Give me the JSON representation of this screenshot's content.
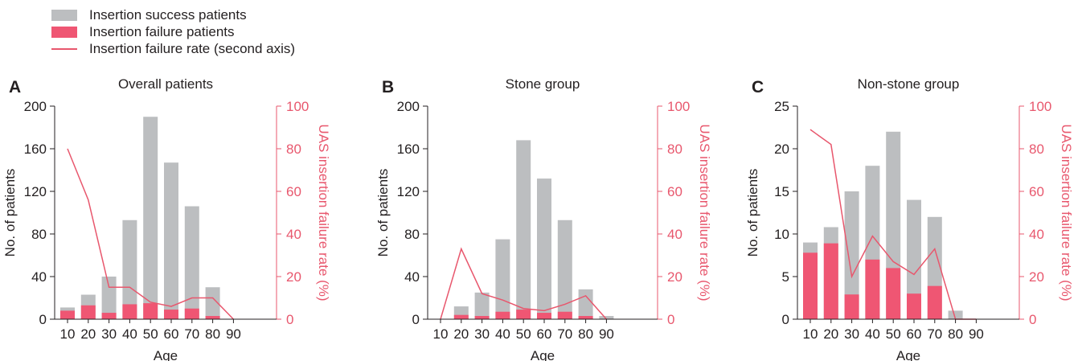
{
  "legend": {
    "success_label": "Insertion success patients",
    "failure_label": "Insertion failure patients",
    "rate_label": "Insertion failure rate (second axis)"
  },
  "colors": {
    "success": "#bcbec0",
    "failure": "#ef5673",
    "rate": "#e8576d",
    "axis": "#231f20"
  },
  "chart_data": [
    {
      "panel": "A",
      "type": "bar",
      "title": "Overall patients",
      "xlabel": "Age",
      "ylabel": "No. of patients",
      "y2label": "UAS insertion failure rate (%)",
      "categories": [
        "10",
        "20",
        "30",
        "40",
        "50",
        "60",
        "70",
        "80",
        "90"
      ],
      "ylim": [
        0,
        200
      ],
      "yticks": [
        "0",
        "40",
        "80",
        "120",
        "160",
        "200"
      ],
      "y2lim": [
        0,
        100
      ],
      "y2ticks": [
        "0",
        "20",
        "40",
        "60",
        "80",
        "100"
      ],
      "series": [
        {
          "name": "Insertion success patients",
          "values": [
            11,
            23,
            40,
            93,
            190,
            147,
            106,
            30,
            0
          ]
        },
        {
          "name": "Insertion failure patients",
          "values": [
            8,
            13,
            6,
            14,
            15,
            9,
            10,
            3,
            0
          ]
        },
        {
          "name": "Insertion failure rate (second axis)",
          "axis": "secondary",
          "type": "line",
          "values": [
            80,
            56,
            15,
            15,
            8,
            6,
            10,
            10,
            0
          ]
        }
      ]
    },
    {
      "panel": "B",
      "type": "bar",
      "title": "Stone group",
      "xlabel": "Age",
      "ylabel": "No. of patients",
      "y2label": "UAS insertion failure rate (%)",
      "categories": [
        "10",
        "20",
        "30",
        "40",
        "50",
        "60",
        "70",
        "80",
        "90"
      ],
      "ylim": [
        0,
        200
      ],
      "yticks": [
        "0",
        "40",
        "80",
        "120",
        "160",
        "200"
      ],
      "y2lim": [
        0,
        100
      ],
      "y2ticks": [
        "0",
        "20",
        "40",
        "60",
        "80",
        "100"
      ],
      "series": [
        {
          "name": "Insertion success patients",
          "values": [
            0,
            12,
            25,
            75,
            168,
            132,
            93,
            28,
            3
          ]
        },
        {
          "name": "Insertion failure patients",
          "values": [
            0,
            4,
            3,
            7,
            9,
            6,
            7,
            3,
            0
          ]
        },
        {
          "name": "Insertion failure rate (second axis)",
          "axis": "secondary",
          "type": "line",
          "values": [
            0,
            33,
            12,
            9,
            5,
            4,
            7,
            11,
            0
          ]
        }
      ]
    },
    {
      "panel": "C",
      "type": "bar",
      "title": "Non-stone group",
      "xlabel": "Age",
      "ylabel": "No. of patients",
      "y2label": "UAS insertion failure rate (%)",
      "categories": [
        "10",
        "20",
        "30",
        "40",
        "50",
        "60",
        "70",
        "80",
        "90"
      ],
      "ylim": [
        0,
        25
      ],
      "yticks": [
        "0",
        "5",
        "10",
        "15",
        "20",
        "25"
      ],
      "y2lim": [
        0,
        100
      ],
      "y2ticks": [
        "0",
        "20",
        "40",
        "60",
        "80",
        "100"
      ],
      "series": [
        {
          "name": "Insertion success patients",
          "values": [
            9,
            10.8,
            15,
            18,
            22,
            14,
            12,
            1,
            0
          ]
        },
        {
          "name": "Insertion failure patients",
          "values": [
            7.8,
            8.9,
            2.9,
            7,
            6,
            3,
            3.9,
            0,
            0
          ]
        },
        {
          "name": "Insertion failure rate (second axis)",
          "axis": "secondary",
          "type": "line",
          "values": [
            89,
            82,
            20,
            39,
            27,
            21,
            33,
            0,
            0
          ]
        }
      ]
    }
  ]
}
